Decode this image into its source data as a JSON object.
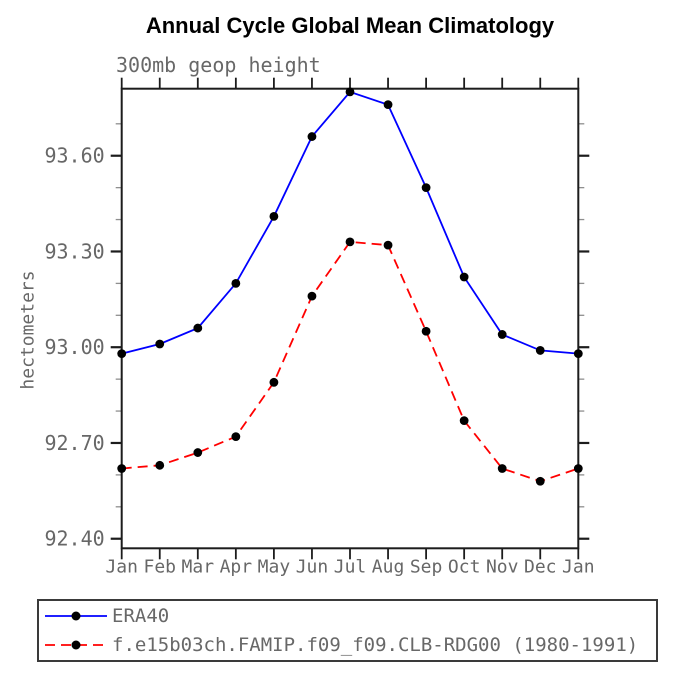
{
  "chart_data": {
    "type": "line",
    "title": "Annual Cycle Global Mean Climatology",
    "subtitle": "300mb geop height",
    "ylabel": "hectometers",
    "xlabel": "",
    "categories": [
      "Jan",
      "Feb",
      "Mar",
      "Apr",
      "May",
      "Jun",
      "Jul",
      "Aug",
      "Sep",
      "Oct",
      "Nov",
      "Dec",
      "Jan"
    ],
    "series": [
      {
        "name": "ERA40",
        "color": "#0000ff",
        "line_style": "solid",
        "marker": "filled-circle",
        "marker_color": "#000000",
        "values": [
          92.98,
          93.01,
          93.06,
          93.2,
          93.41,
          93.66,
          93.8,
          93.76,
          93.5,
          93.22,
          93.04,
          92.99,
          92.98
        ]
      },
      {
        "name": "f.e15b03ch.FAMIP.f09_f09.CLB-RDG00 (1980-1991)",
        "color": "#ff0000",
        "line_style": "dashed",
        "marker": "filled-circle",
        "marker_color": "#000000",
        "values": [
          92.62,
          92.63,
          92.67,
          92.72,
          92.89,
          93.16,
          93.33,
          93.32,
          93.05,
          92.77,
          92.62,
          92.58,
          92.62
        ]
      }
    ],
    "ylim": [
      92.37,
      93.81
    ],
    "yticks": {
      "major": [
        92.4,
        92.7,
        93.0,
        93.3,
        93.6
      ],
      "minor": [
        92.5,
        92.6,
        92.8,
        92.9,
        93.1,
        93.2,
        93.4,
        93.5,
        93.7
      ],
      "label_format": "2dp"
    },
    "grid": false,
    "legend_position": "bottom",
    "colors": {
      "axis": "#1c1c1c",
      "minor_tick": "#8f8f8f",
      "text": "#676767",
      "title": "#000000"
    }
  }
}
